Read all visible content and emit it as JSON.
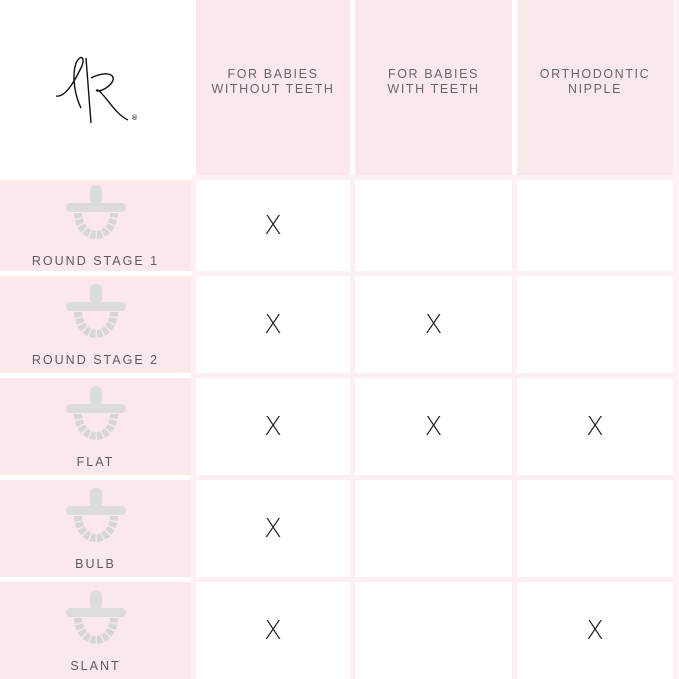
{
  "logo": {
    "text": "RR",
    "registered": "®"
  },
  "columns": [
    "FOR BABIES\nWITHOUT TEETH",
    "FOR BABIES\nWITH TEETH",
    "ORTHODONTIC\nNIPPLE"
  ],
  "rows": [
    {
      "name": "ROUND STAGE 1",
      "marks": [
        "X",
        "",
        ""
      ]
    },
    {
      "name": "ROUND STAGE 2",
      "marks": [
        "X",
        "X",
        ""
      ]
    },
    {
      "name": "FLAT",
      "marks": [
        "X",
        "X",
        "X"
      ]
    },
    {
      "name": "BULB",
      "marks": [
        "X",
        "",
        ""
      ]
    },
    {
      "name": "SLANT",
      "marks": [
        "X",
        "",
        "X"
      ]
    }
  ],
  "colors": {
    "pink": "#fae8eb",
    "text": "#5f5a5c"
  }
}
